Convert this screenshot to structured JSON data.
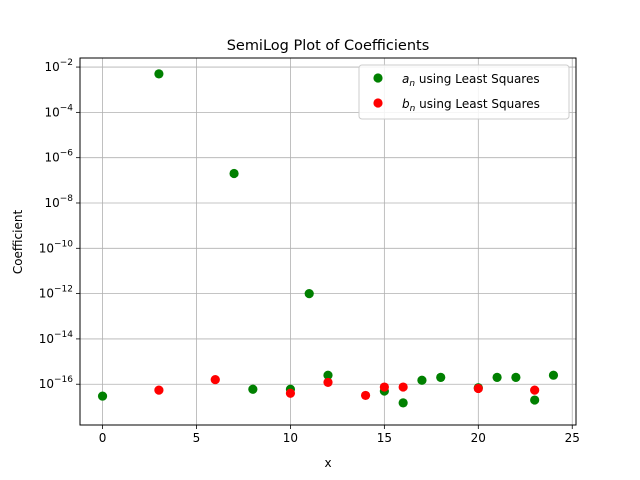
{
  "chart_data": {
    "type": "scatter",
    "title": "SemiLog Plot of Coefficients",
    "xlabel": "x",
    "ylabel": "Coefficient",
    "xlim": [
      -1.2,
      25.2
    ],
    "ylim_log10": [
      -17.8,
      -1.6
    ],
    "yscale": "log",
    "grid": true,
    "legend_position": "top-right",
    "x_ticks": [
      0,
      5,
      10,
      15,
      20,
      25
    ],
    "x_tick_labels": [
      "0",
      "5",
      "10",
      "15",
      "20",
      "25"
    ],
    "y_tick_exponents": [
      -16,
      -14,
      -12,
      -10,
      -8,
      -6,
      -4,
      -2
    ],
    "y_tick_base": "10",
    "series": [
      {
        "name": "a_n using Least Squares",
        "legend_var": "a",
        "legend_sub": "n",
        "legend_text": " using Least Squares",
        "color": "#008000",
        "x": [
          0,
          3,
          7,
          8,
          10,
          11,
          12,
          15,
          16,
          17,
          18,
          20,
          21,
          22,
          23,
          24
        ],
        "y": [
          3e-17,
          0.005,
          2e-07,
          6e-17,
          6e-17,
          1e-12,
          2.5e-16,
          5e-17,
          1.5e-17,
          1.5e-16,
          2e-16,
          7e-17,
          2e-16,
          2e-16,
          2e-17,
          2.5e-16
        ]
      },
      {
        "name": "b_n using Least Squares",
        "legend_var": "b",
        "legend_sub": "n",
        "legend_text": " using Least Squares",
        "color": "#ff0000",
        "x": [
          3,
          6,
          10,
          12,
          14,
          15,
          16,
          20,
          23
        ],
        "y": [
          5.5e-17,
          1.6e-16,
          4e-17,
          1.2e-16,
          3.2e-17,
          7.5e-17,
          7.5e-17,
          6.5e-17,
          5.5e-17
        ]
      }
    ]
  }
}
